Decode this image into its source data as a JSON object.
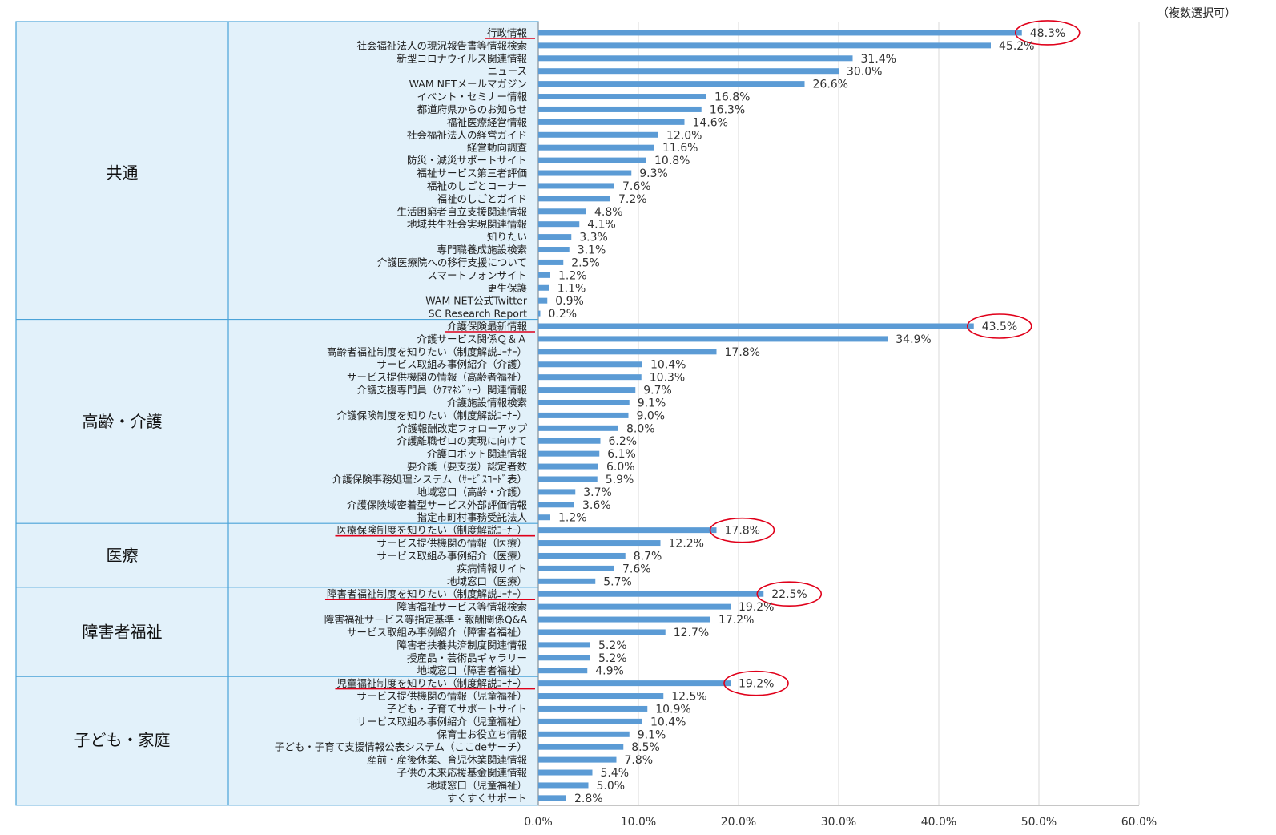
{
  "note": "（複数選択可）",
  "colors": {
    "bar": "#5b9bd5",
    "panel": "#e2f1fa",
    "panel_border": "#4aa3d8",
    "grid": "#d9d9d9",
    "highlight": "#e0001a"
  },
  "chart_data": {
    "type": "bar",
    "orientation": "horizontal",
    "xlim": [
      0,
      60
    ],
    "x_ticks": [
      "0.0%",
      "10.0%",
      "20.0%",
      "30.0%",
      "40.0%",
      "50.0%",
      "60.0%"
    ],
    "grid": true,
    "groups": [
      {
        "name": "共通",
        "items": [
          {
            "label": "行政情報",
            "value": 48.3,
            "value_label": "48.3%",
            "highlight": true
          },
          {
            "label": "社会福祉法人の現況報告書等情報検索",
            "value": 45.2,
            "value_label": "45.2%"
          },
          {
            "label": "新型コロナウイルス関連情報",
            "value": 31.4,
            "value_label": "31.4%"
          },
          {
            "label": "ニュース",
            "value": 30.0,
            "value_label": "30.0%"
          },
          {
            "label": "WAM NETメールマガジン",
            "value": 26.6,
            "value_label": "26.6%"
          },
          {
            "label": "イベント・セミナー情報",
            "value": 16.8,
            "value_label": "16.8%"
          },
          {
            "label": "都道府県からのお知らせ",
            "value": 16.3,
            "value_label": "16.3%"
          },
          {
            "label": "福祉医療経営情報",
            "value": 14.6,
            "value_label": "14.6%"
          },
          {
            "label": "社会福祉法人の経営ガイド",
            "value": 12.0,
            "value_label": "12.0%"
          },
          {
            "label": "経営動向調査",
            "value": 11.6,
            "value_label": "11.6%"
          },
          {
            "label": "防災・減災サポートサイト",
            "value": 10.8,
            "value_label": "10.8%"
          },
          {
            "label": "福祉サービス第三者評価",
            "value": 9.3,
            "value_label": "9.3%"
          },
          {
            "label": "福祉のしごとコーナー",
            "value": 7.6,
            "value_label": "7.6%"
          },
          {
            "label": "福祉のしごとガイド",
            "value": 7.2,
            "value_label": "7.2%"
          },
          {
            "label": "生活困窮者自立支援関連情報",
            "value": 4.8,
            "value_label": "4.8%"
          },
          {
            "label": "地域共生社会実現関連情報",
            "value": 4.1,
            "value_label": "4.1%"
          },
          {
            "label": "知りたい",
            "value": 3.3,
            "value_label": "3.3%"
          },
          {
            "label": "専門職養成施設検索",
            "value": 3.1,
            "value_label": "3.1%"
          },
          {
            "label": "介護医療院への移行支援について",
            "value": 2.5,
            "value_label": "2.5%"
          },
          {
            "label": "スマートフォンサイト",
            "value": 1.2,
            "value_label": "1.2%"
          },
          {
            "label": "更生保護",
            "value": 1.1,
            "value_label": "1.1%"
          },
          {
            "label": "WAM NET公式Twitter",
            "value": 0.9,
            "value_label": "0.9%"
          },
          {
            "label": "SC Research Report",
            "value": 0.2,
            "value_label": "0.2%"
          }
        ]
      },
      {
        "name": "高齢・介護",
        "items": [
          {
            "label": "介護保険最新情報",
            "value": 43.5,
            "value_label": "43.5%",
            "highlight": true
          },
          {
            "label": "介護サービス関係Ｑ＆Ａ",
            "value": 34.9,
            "value_label": "34.9%"
          },
          {
            "label": "高齢者福祉制度を知りたい（制度解説ｺｰﾅｰ）",
            "value": 17.8,
            "value_label": "17.8%"
          },
          {
            "label": "サービス取組み事例紹介（介護）",
            "value": 10.4,
            "value_label": "10.4%"
          },
          {
            "label": "サービス提供機関の情報（高齢者福祉）",
            "value": 10.3,
            "value_label": "10.3%"
          },
          {
            "label": "介護支援専門員（ｹｱﾏﾈｼﾞｬｰ）関連情報",
            "value": 9.7,
            "value_label": "9.7%"
          },
          {
            "label": "介護施設情報検索",
            "value": 9.1,
            "value_label": "9.1%"
          },
          {
            "label": "介護保険制度を知りたい（制度解説ｺｰﾅｰ）",
            "value": 9.0,
            "value_label": "9.0%"
          },
          {
            "label": "介護報酬改定フォローアップ",
            "value": 8.0,
            "value_label": "8.0%"
          },
          {
            "label": "介護離職ゼロの実現に向けて",
            "value": 6.2,
            "value_label": "6.2%"
          },
          {
            "label": "介護ロボット関連情報",
            "value": 6.1,
            "value_label": "6.1%"
          },
          {
            "label": "要介護（要支援）認定者数",
            "value": 6.0,
            "value_label": "6.0%"
          },
          {
            "label": "介護保険事務処理システム（ｻｰﾋﾞｽｺｰﾄﾞ表）",
            "value": 5.9,
            "value_label": "5.9%"
          },
          {
            "label": "地域窓口（高齢・介護）",
            "value": 3.7,
            "value_label": "3.7%"
          },
          {
            "label": "介護保険域密着型サービス外部評価情報",
            "value": 3.6,
            "value_label": "3.6%"
          },
          {
            "label": "指定市町村事務受託法人",
            "value": 1.2,
            "value_label": "1.2%"
          }
        ]
      },
      {
        "name": "医療",
        "items": [
          {
            "label": "医療保険制度を知りたい（制度解説ｺｰﾅｰ）",
            "value": 17.8,
            "value_label": "17.8%",
            "highlight": true
          },
          {
            "label": "サービス提供機関の情報（医療）",
            "value": 12.2,
            "value_label": "12.2%"
          },
          {
            "label": "サービス取組み事例紹介（医療）",
            "value": 8.7,
            "value_label": "8.7%"
          },
          {
            "label": "疾病情報サイト",
            "value": 7.6,
            "value_label": "7.6%"
          },
          {
            "label": "地域窓口（医療）",
            "value": 5.7,
            "value_label": "5.7%"
          }
        ]
      },
      {
        "name": "障害者福祉",
        "items": [
          {
            "label": "障害者福祉制度を知りたい（制度解説ｺｰﾅｰ）",
            "value": 22.5,
            "value_label": "22.5%",
            "highlight": true
          },
          {
            "label": "障害福祉サービス等情報検索",
            "value": 19.2,
            "value_label": "19.2%"
          },
          {
            "label": "障害福祉サービス等指定基準・報酬関係Q&A",
            "value": 17.2,
            "value_label": "17.2%"
          },
          {
            "label": "サービス取組み事例紹介（障害者福祉）",
            "value": 12.7,
            "value_label": "12.7%"
          },
          {
            "label": "障害者扶養共済制度関連情報",
            "value": 5.2,
            "value_label": "5.2%"
          },
          {
            "label": "授産品・芸術品ギャラリー",
            "value": 5.2,
            "value_label": "5.2%"
          },
          {
            "label": "地域窓口（障害者福祉）",
            "value": 4.9,
            "value_label": "4.9%"
          }
        ]
      },
      {
        "name": "子ども・家庭",
        "items": [
          {
            "label": "児童福祉制度を知りたい（制度解説ｺｰﾅｰ）",
            "value": 19.2,
            "value_label": "19.2%",
            "highlight": true
          },
          {
            "label": "サービス提供機関の情報（児童福祉）",
            "value": 12.5,
            "value_label": "12.5%"
          },
          {
            "label": "子ども・子育てサポートサイト",
            "value": 10.9,
            "value_label": "10.9%"
          },
          {
            "label": "サービス取組み事例紹介（児童福祉）",
            "value": 10.4,
            "value_label": "10.4%"
          },
          {
            "label": "保育士お役立ち情報",
            "value": 9.1,
            "value_label": "9.1%"
          },
          {
            "label": "子ども・子育て支援情報公表システム（ここdeサーチ）",
            "value": 8.5,
            "value_label": "8.5%"
          },
          {
            "label": "産前・産後休業、育児休業関連情報",
            "value": 7.8,
            "value_label": "7.8%"
          },
          {
            "label": "子供の未来応援基金関連情報",
            "value": 5.4,
            "value_label": "5.4%"
          },
          {
            "label": "地域窓口（児童福祉）",
            "value": 5.0,
            "value_label": "5.0%"
          },
          {
            "label": "すくすくサポート",
            "value": 2.8,
            "value_label": "2.8%"
          }
        ]
      }
    ]
  }
}
